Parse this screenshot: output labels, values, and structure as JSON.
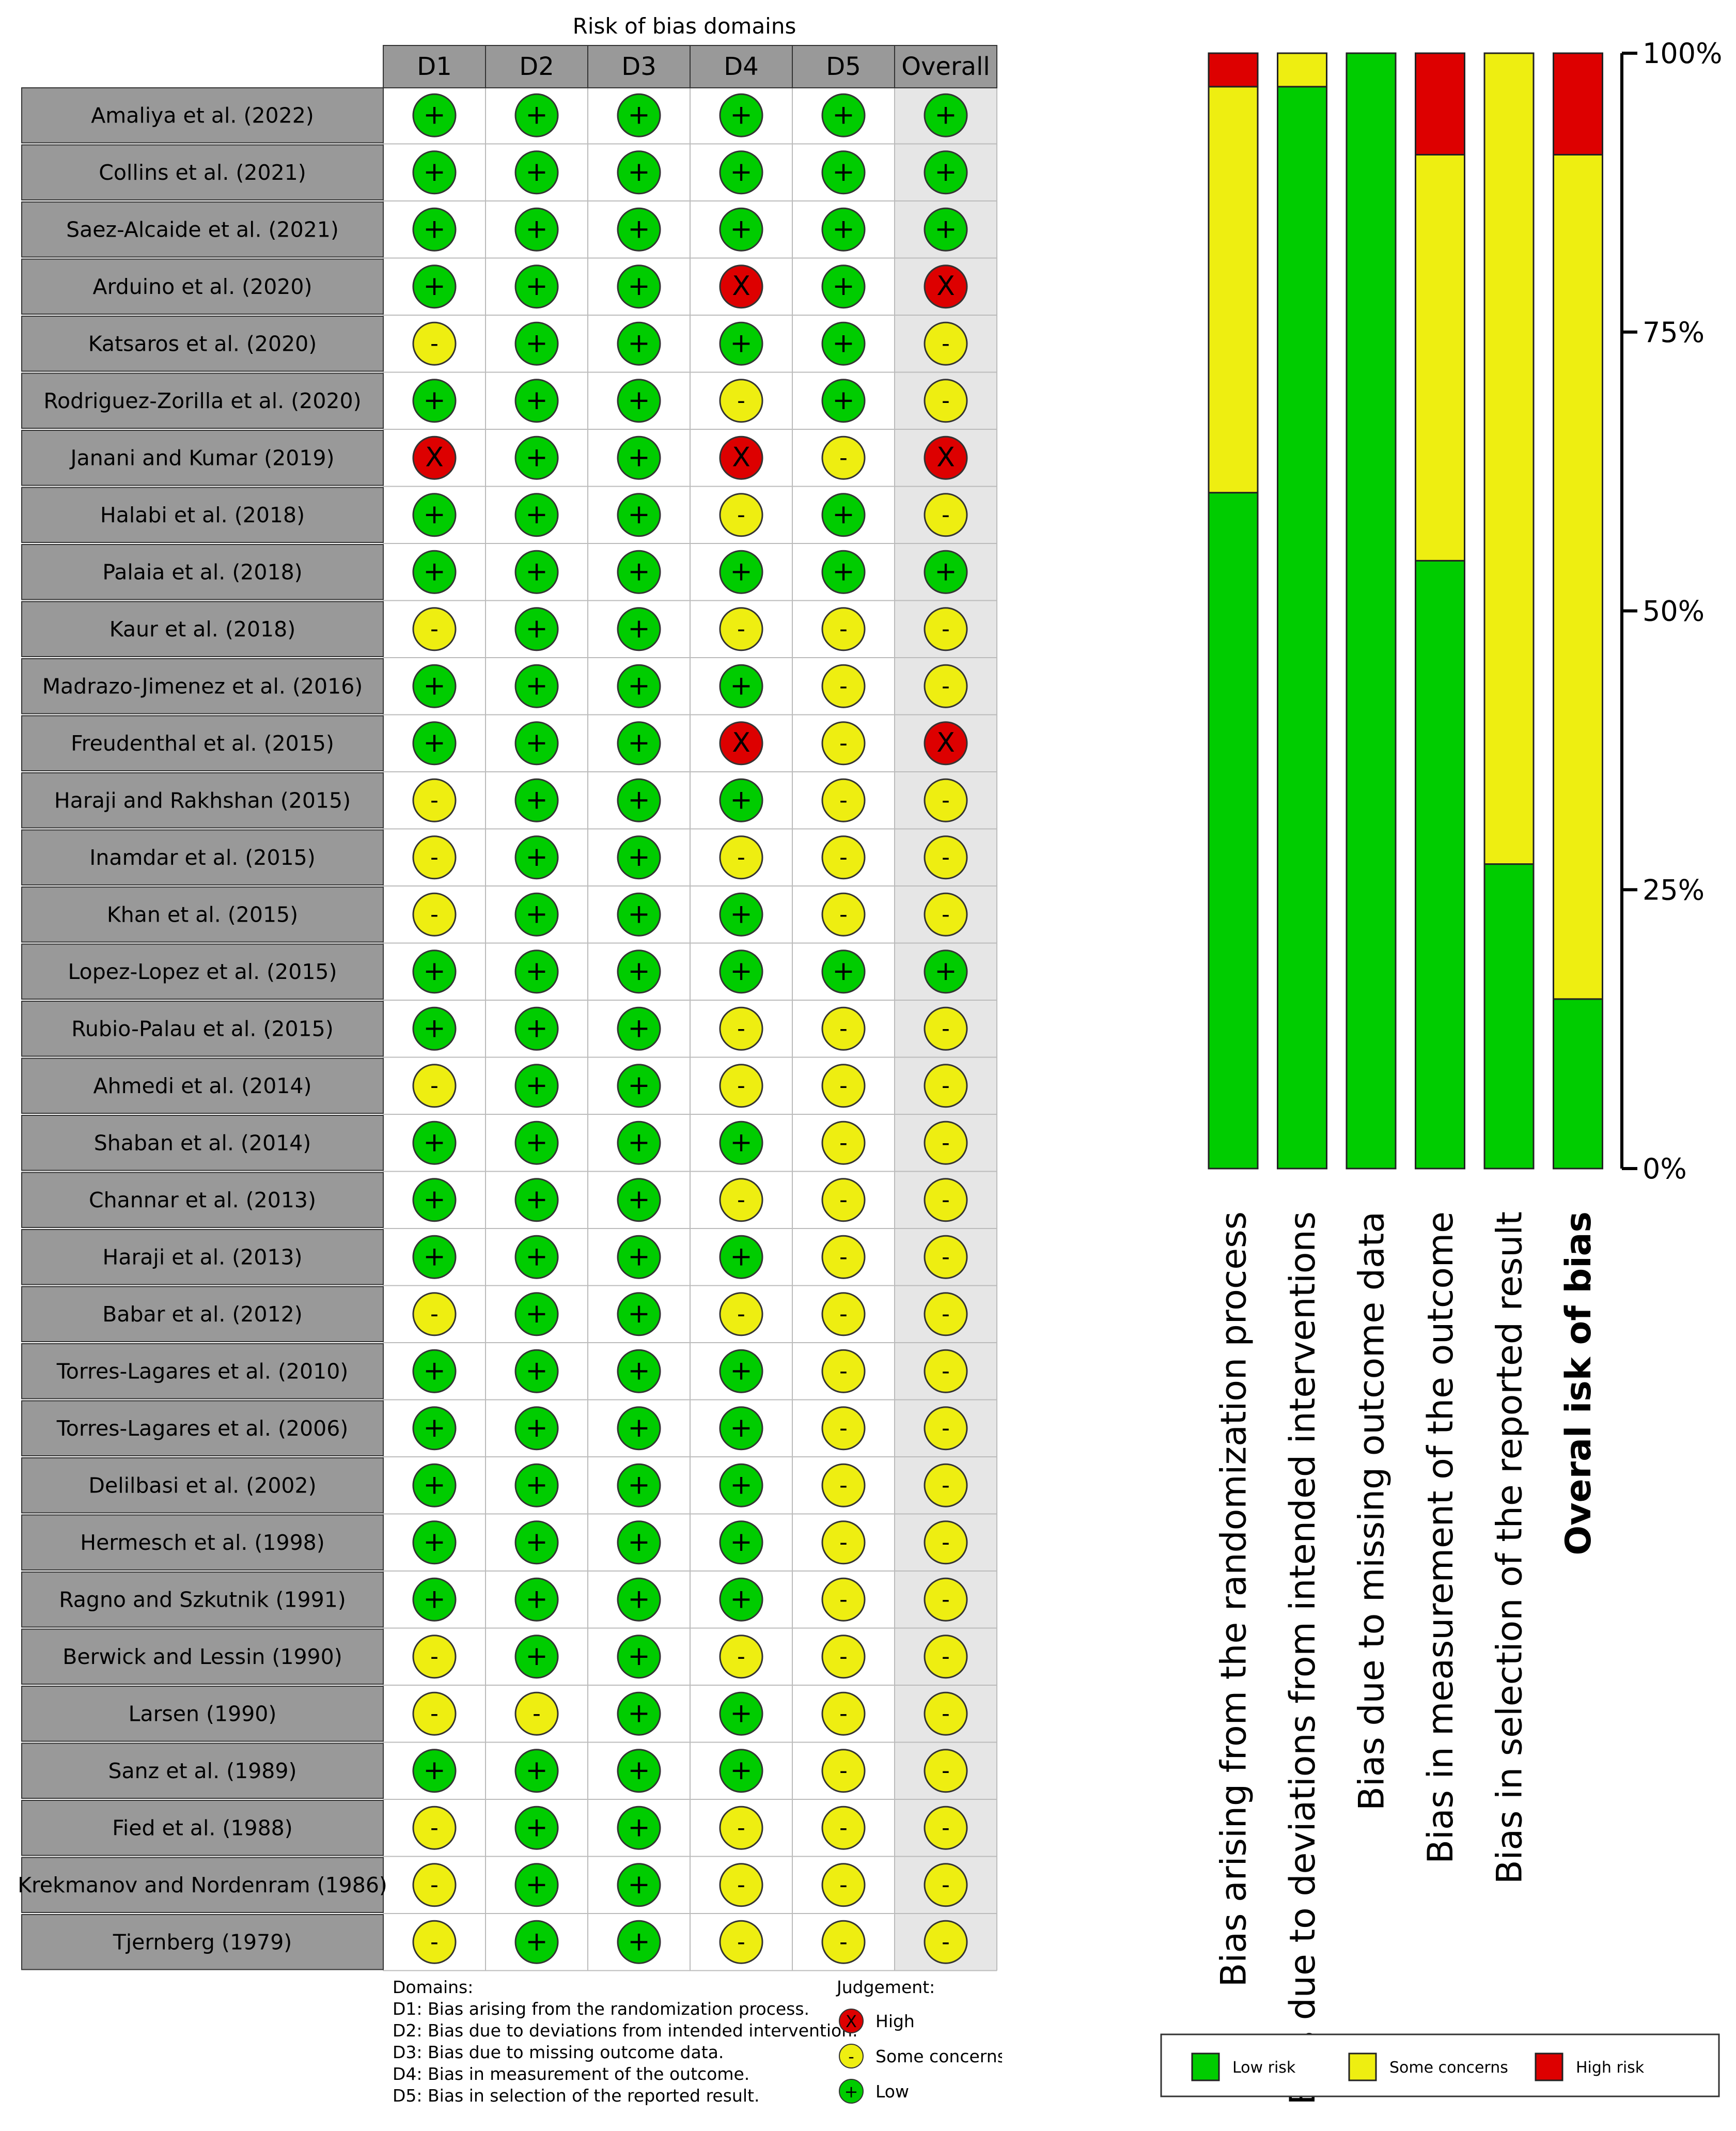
{
  "chart_data": [
    {
      "type": "table",
      "title": "Risk of bias domains",
      "columns": [
        "D1",
        "D2",
        "D3",
        "D4",
        "D5",
        "Overall"
      ],
      "studies": [
        {
          "name": "Amaliya et al. (2022)",
          "judgements": [
            "low",
            "low",
            "low",
            "low",
            "low",
            "low"
          ]
        },
        {
          "name": "Collins et al. (2021)",
          "judgements": [
            "low",
            "low",
            "low",
            "low",
            "low",
            "low"
          ]
        },
        {
          "name": "Saez-Alcaide et al. (2021)",
          "judgements": [
            "low",
            "low",
            "low",
            "low",
            "low",
            "low"
          ]
        },
        {
          "name": "Arduino et al. (2020)",
          "judgements": [
            "low",
            "low",
            "low",
            "high",
            "low",
            "high"
          ]
        },
        {
          "name": "Katsaros et al. (2020)",
          "judgements": [
            "some",
            "low",
            "low",
            "low",
            "low",
            "some"
          ]
        },
        {
          "name": "Rodriguez-Zorilla et al. (2020)",
          "judgements": [
            "low",
            "low",
            "low",
            "some",
            "low",
            "some"
          ]
        },
        {
          "name": "Janani and Kumar (2019)",
          "judgements": [
            "high",
            "low",
            "low",
            "high",
            "some",
            "high"
          ]
        },
        {
          "name": "Halabi et al. (2018)",
          "judgements": [
            "low",
            "low",
            "low",
            "some",
            "low",
            "some"
          ]
        },
        {
          "name": "Palaia et al. (2018)",
          "judgements": [
            "low",
            "low",
            "low",
            "low",
            "low",
            "low"
          ]
        },
        {
          "name": "Kaur et al. (2018)",
          "judgements": [
            "some",
            "low",
            "low",
            "some",
            "some",
            "some"
          ]
        },
        {
          "name": "Madrazo-Jimenez et al. (2016)",
          "judgements": [
            "low",
            "low",
            "low",
            "low",
            "some",
            "some"
          ]
        },
        {
          "name": "Freudenthal et al. (2015)",
          "judgements": [
            "low",
            "low",
            "low",
            "high",
            "some",
            "high"
          ]
        },
        {
          "name": "Haraji and Rakhshan (2015)",
          "judgements": [
            "some",
            "low",
            "low",
            "low",
            "some",
            "some"
          ]
        },
        {
          "name": "Inamdar et al. (2015)",
          "judgements": [
            "some",
            "low",
            "low",
            "some",
            "some",
            "some"
          ]
        },
        {
          "name": "Khan et al. (2015)",
          "judgements": [
            "some",
            "low",
            "low",
            "low",
            "some",
            "some"
          ]
        },
        {
          "name": "Lopez-Lopez et al. (2015)",
          "judgements": [
            "low",
            "low",
            "low",
            "low",
            "low",
            "low"
          ]
        },
        {
          "name": "Rubio-Palau et al. (2015)",
          "judgements": [
            "low",
            "low",
            "low",
            "some",
            "some",
            "some"
          ]
        },
        {
          "name": "Ahmedi et al. (2014)",
          "judgements": [
            "some",
            "low",
            "low",
            "some",
            "some",
            "some"
          ]
        },
        {
          "name": "Shaban et al. (2014)",
          "judgements": [
            "low",
            "low",
            "low",
            "low",
            "some",
            "some"
          ]
        },
        {
          "name": "Channar et al. (2013)",
          "judgements": [
            "low",
            "low",
            "low",
            "some",
            "some",
            "some"
          ]
        },
        {
          "name": "Haraji et al. (2013)",
          "judgements": [
            "low",
            "low",
            "low",
            "low",
            "some",
            "some"
          ]
        },
        {
          "name": "Babar et al. (2012)",
          "judgements": [
            "some",
            "low",
            "low",
            "some",
            "some",
            "some"
          ]
        },
        {
          "name": "Torres-Lagares et al. (2010)",
          "judgements": [
            "low",
            "low",
            "low",
            "low",
            "some",
            "some"
          ]
        },
        {
          "name": "Torres-Lagares et al. (2006)",
          "judgements": [
            "low",
            "low",
            "low",
            "low",
            "some",
            "some"
          ]
        },
        {
          "name": "Delilbasi et al. (2002)",
          "judgements": [
            "low",
            "low",
            "low",
            "low",
            "some",
            "some"
          ]
        },
        {
          "name": "Hermesch et al. (1998)",
          "judgements": [
            "low",
            "low",
            "low",
            "low",
            "some",
            "some"
          ]
        },
        {
          "name": "Ragno and Szkutnik (1991)",
          "judgements": [
            "low",
            "low",
            "low",
            "low",
            "some",
            "some"
          ]
        },
        {
          "name": "Berwick and Lessin (1990)",
          "judgements": [
            "some",
            "low",
            "low",
            "some",
            "some",
            "some"
          ]
        },
        {
          "name": "Larsen (1990)",
          "judgements": [
            "some",
            "some",
            "low",
            "low",
            "some",
            "some"
          ]
        },
        {
          "name": "Sanz et al. (1989)",
          "judgements": [
            "low",
            "low",
            "low",
            "low",
            "some",
            "some"
          ]
        },
        {
          "name": "Fied et al. (1988)",
          "judgements": [
            "some",
            "low",
            "low",
            "some",
            "some",
            "some"
          ]
        },
        {
          "name": "Krekmanov and Nordenram (1986)",
          "judgements": [
            "some",
            "low",
            "low",
            "some",
            "some",
            "some"
          ]
        },
        {
          "name": "Tjernberg (1979)",
          "judgements": [
            "some",
            "low",
            "low",
            "some",
            "some",
            "some"
          ]
        }
      ],
      "domains_title": "Domains:",
      "domains": [
        "D1: Bias arising from the randomization process.",
        "D2: Bias due to deviations from intended intervention.",
        "D3: Bias due to missing outcome data.",
        "D4: Bias in measurement of the outcome.",
        "D5: Bias in selection of the reported result."
      ],
      "judgement_title": "Judgement:",
      "judgement_legend": [
        {
          "key": "high",
          "label": "High",
          "symbol": "X"
        },
        {
          "key": "some",
          "label": "Some concerns",
          "symbol": "-"
        },
        {
          "key": "low",
          "label": "Low",
          "symbol": "+"
        }
      ]
    },
    {
      "type": "bar",
      "stacked": true,
      "categories": [
        "Bias arising from the randomization process",
        "Bias due to deviations from intended interventions",
        "Bias due to missing outcome data",
        "Bias in measurement of the outcome",
        "Bias in selection of the reported result",
        "Overal isk of bias"
      ],
      "bold_categories": [
        "Overal isk of bias"
      ],
      "series": [
        {
          "name": "Low risk",
          "key": "low",
          "values": [
            60.6,
            97,
            100,
            54.5,
            27.3,
            15.2
          ]
        },
        {
          "name": "Some concerns",
          "key": "some",
          "values": [
            36.4,
            3,
            0,
            36.4,
            72.7,
            75.7
          ]
        },
        {
          "name": "High risk",
          "key": "high",
          "values": [
            3,
            0,
            0,
            9.1,
            0,
            9.1
          ]
        }
      ],
      "ylim": [
        0,
        100
      ],
      "yticks": [
        "0%",
        "25%",
        "50%",
        "75%",
        "100%"
      ],
      "legend_position": "bottom"
    }
  ],
  "colors": {
    "low": "#00cc00",
    "some": "#eeee11",
    "high": "#dd0000",
    "study_cell": "#999999",
    "header_cell": "#999999",
    "overall_col": "#e6e6e6",
    "grid": "#bbbbbb"
  }
}
